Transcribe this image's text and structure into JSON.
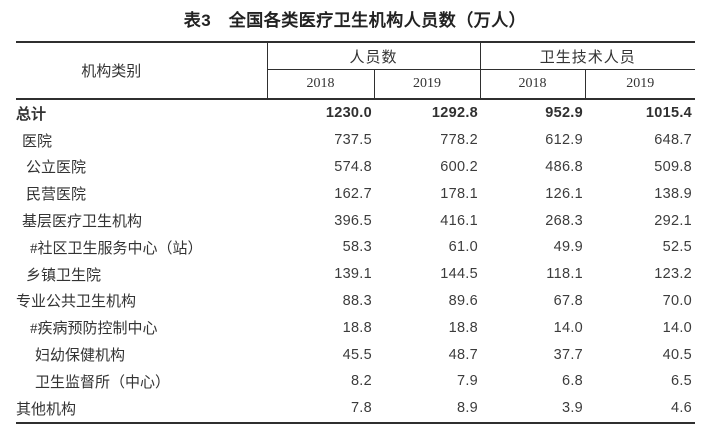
{
  "title": "表3　全国各类医疗卫生机构人员数（万人）",
  "unit_note": "万人",
  "table": {
    "col_header": {
      "category": "机构类别",
      "groups": [
        {
          "label": "人员数",
          "years": [
            "2018",
            "2019"
          ]
        },
        {
          "label": "卫生技术人员",
          "years": [
            "2018",
            "2019"
          ]
        }
      ]
    },
    "rows": [
      {
        "label": "总计",
        "indent": 0,
        "bold": true,
        "values": [
          "1230.0",
          "1292.8",
          "952.9",
          "1015.4"
        ]
      },
      {
        "label": "医院",
        "indent": 1,
        "bold": false,
        "values": [
          "737.5",
          "778.2",
          "612.9",
          "648.7"
        ]
      },
      {
        "label": "公立医院",
        "indent": 2,
        "bold": false,
        "values": [
          "574.8",
          "600.2",
          "486.8",
          "509.8"
        ]
      },
      {
        "label": "民营医院",
        "indent": 2,
        "bold": false,
        "values": [
          "162.7",
          "178.1",
          "126.1",
          "138.9"
        ]
      },
      {
        "label": "基层医疗卫生机构",
        "indent": 1,
        "bold": false,
        "values": [
          "396.5",
          "416.1",
          "268.3",
          "292.1"
        ]
      },
      {
        "label": "#社区卫生服务中心（站）",
        "indent": 3,
        "bold": false,
        "values": [
          "58.3",
          "61.0",
          "49.9",
          "52.5"
        ]
      },
      {
        "label": "乡镇卫生院",
        "indent": 2,
        "bold": false,
        "values": [
          "139.1",
          "144.5",
          "118.1",
          "123.2"
        ]
      },
      {
        "label": "专业公共卫生机构",
        "indent": 0,
        "bold": false,
        "values": [
          "88.3",
          "89.6",
          "67.8",
          "70.0"
        ]
      },
      {
        "label": "#疾病预防控制中心",
        "indent": 3,
        "bold": false,
        "values": [
          "18.8",
          "18.8",
          "14.0",
          "14.0"
        ]
      },
      {
        "label": "妇幼保健机构",
        "indent": 4,
        "bold": false,
        "values": [
          "45.5",
          "48.7",
          "37.7",
          "40.5"
        ]
      },
      {
        "label": "卫生监督所（中心）",
        "indent": 4,
        "bold": false,
        "values": [
          "8.2",
          "7.9",
          "6.8",
          "6.5"
        ]
      },
      {
        "label": "其他机构",
        "indent": 0,
        "bold": false,
        "values": [
          "7.8",
          "8.9",
          "3.9",
          "4.6"
        ]
      }
    ]
  },
  "colors": {
    "text": "#3b3b3b",
    "border": "#2f2f2f",
    "background": "#ffffff"
  }
}
